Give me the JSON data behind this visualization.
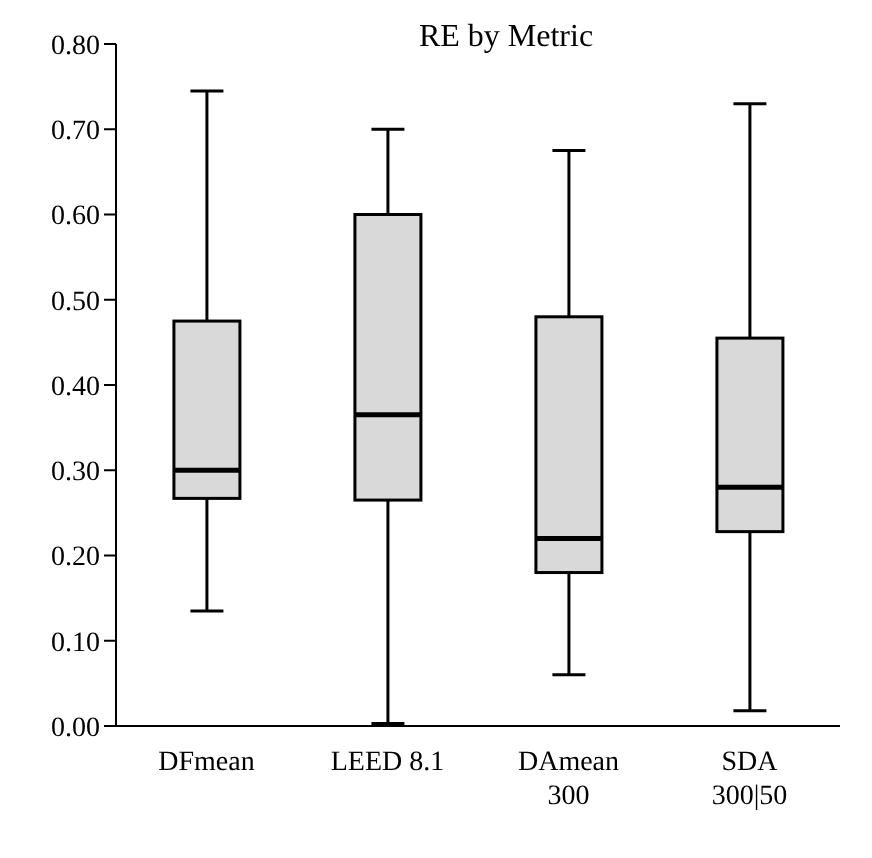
{
  "chart_data": {
    "type": "box",
    "title": "RE by Metric",
    "categories": [
      "DFmean",
      "LEED 8.1",
      "DAmean\n300",
      "SDA\n300|50"
    ],
    "boxes": [
      {
        "low": 0.135,
        "q1": 0.267,
        "median": 0.3,
        "q3": 0.475,
        "high": 0.745
      },
      {
        "low": 0.003,
        "q1": 0.265,
        "median": 0.365,
        "q3": 0.6,
        "high": 0.7
      },
      {
        "low": 0.06,
        "q1": 0.18,
        "median": 0.22,
        "q3": 0.48,
        "high": 0.675
      },
      {
        "low": 0.018,
        "q1": 0.228,
        "median": 0.28,
        "q3": 0.455,
        "high": 0.73
      }
    ],
    "color": "#d9d9d9",
    "ylim": [
      0,
      0.8
    ],
    "yticks": [
      {
        "value": 0,
        "label": "0.00"
      },
      {
        "value": 0.1,
        "label": "0.10"
      },
      {
        "value": 0.2,
        "label": "0.20"
      },
      {
        "value": 0.3,
        "label": "0.30"
      },
      {
        "value": 0.4,
        "label": "0.40"
      },
      {
        "value": 0.5,
        "label": "0.50"
      },
      {
        "value": 0.6,
        "label": "0.60"
      },
      {
        "value": 0.7,
        "label": "0.70"
      },
      {
        "value": 0.8,
        "label": "0.80"
      }
    ],
    "grid": false
  }
}
